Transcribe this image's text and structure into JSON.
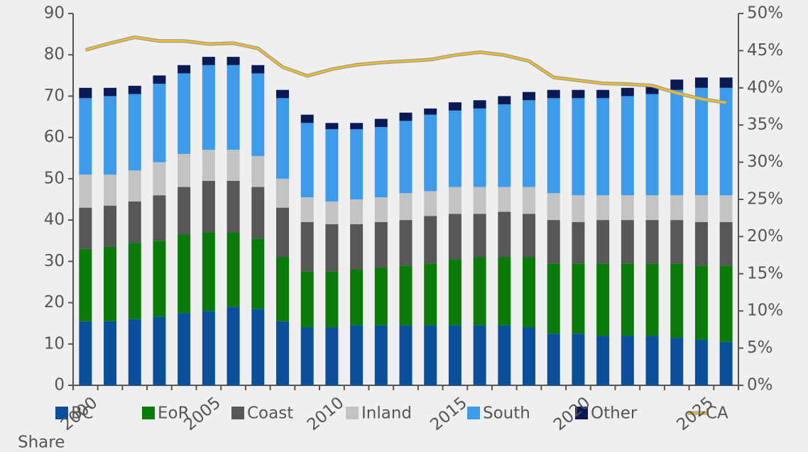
{
  "chart_data": {
    "type": "bar",
    "stacked": true,
    "categories": [
      "2000",
      null,
      null,
      null,
      null,
      "2005",
      null,
      null,
      null,
      null,
      "2010",
      null,
      null,
      null,
      null,
      "2015",
      null,
      null,
      null,
      null,
      "2020",
      null,
      null,
      null,
      null,
      "2025",
      null
    ],
    "series": [
      {
        "name": "BC",
        "color": "#0b4f9a",
        "values": [
          15.5,
          15.5,
          16,
          16.5,
          17.5,
          18,
          19,
          18.5,
          15.5,
          14,
          14,
          14.5,
          14.5,
          14.5,
          14.5,
          14.5,
          14.5,
          14.5,
          14,
          12.5,
          12.5,
          12,
          12,
          12,
          11.5,
          11,
          10.5
        ]
      },
      {
        "name": "EoR",
        "color": "#0a7a0a",
        "values": [
          17.5,
          18,
          18.5,
          18.5,
          19,
          19,
          18,
          17,
          15.5,
          13.5,
          13.5,
          13.5,
          14,
          14.5,
          15,
          16,
          16.5,
          16.5,
          17,
          17,
          17,
          17.5,
          17.5,
          17.5,
          18,
          18,
          18.5
        ]
      },
      {
        "name": "Coast",
        "color": "#575757",
        "values": [
          10,
          10,
          10,
          11,
          11.5,
          12.5,
          12.5,
          12.5,
          12,
          12,
          11.5,
          11,
          11,
          11,
          11.5,
          11,
          10.5,
          11,
          10.5,
          10.5,
          10,
          10.5,
          10.5,
          10.5,
          10.5,
          10.5,
          10.5
        ]
      },
      {
        "name": "Inland",
        "color": "#c3c3c3",
        "values": [
          8,
          7.5,
          7.5,
          8,
          8,
          7.5,
          7.5,
          7.5,
          7,
          6,
          5.5,
          6,
          6,
          6.5,
          6,
          6.5,
          6.5,
          6,
          6.5,
          6.5,
          6.5,
          6,
          6,
          6,
          6,
          6.5,
          6.5
        ]
      },
      {
        "name": "South",
        "color": "#3d9be9",
        "values": [
          18.5,
          19,
          18.5,
          19,
          19.5,
          20.5,
          20.5,
          20,
          19.5,
          18,
          17.5,
          17,
          17,
          17.5,
          18.5,
          18.5,
          19,
          20,
          21,
          23,
          23.5,
          23.5,
          24,
          24.5,
          25.5,
          26,
          26
        ]
      },
      {
        "name": "Other",
        "color": "#0b1a55",
        "values": [
          2.5,
          2,
          2,
          2,
          2,
          2,
          2,
          2,
          2,
          2,
          1.5,
          1.5,
          2,
          2,
          1.5,
          2,
          2,
          2,
          2,
          2,
          2,
          2,
          2,
          2,
          2.5,
          2.5,
          2.5
        ]
      },
      {
        "name": "CA",
        "color": "#f0c020",
        "type": "line",
        "axis": "y2",
        "values": [
          45.1,
          46,
          46.8,
          46.3,
          46.3,
          45.9,
          46,
          45.3,
          42.8,
          41.6,
          42.5,
          43.1,
          43.4,
          43.6,
          43.8,
          44.4,
          44.8,
          44.4,
          43.6,
          41.4,
          41,
          40.6,
          40.5,
          40.3,
          39.3,
          38.5,
          38
        ]
      }
    ],
    "ylim": [
      0,
      90
    ],
    "yticks": [
      0,
      10,
      20,
      30,
      40,
      50,
      60,
      70,
      80,
      90
    ],
    "y2lim": [
      0,
      50
    ],
    "y2ticks": [
      {
        "value": 0,
        "label": "0%"
      },
      {
        "value": 5,
        "label": "5%"
      },
      {
        "value": 10,
        "label": "10%"
      },
      {
        "value": 15,
        "label": "15%"
      },
      {
        "value": 20,
        "label": "20%"
      },
      {
        "value": 25,
        "label": "25%"
      },
      {
        "value": 30,
        "label": "30%"
      },
      {
        "value": 35,
        "label": "35%"
      },
      {
        "value": 40,
        "label": "40%"
      },
      {
        "value": 45,
        "label": "45%"
      },
      {
        "value": 50,
        "label": "50%"
      }
    ],
    "y2label": "Share",
    "legend": "bottom"
  }
}
